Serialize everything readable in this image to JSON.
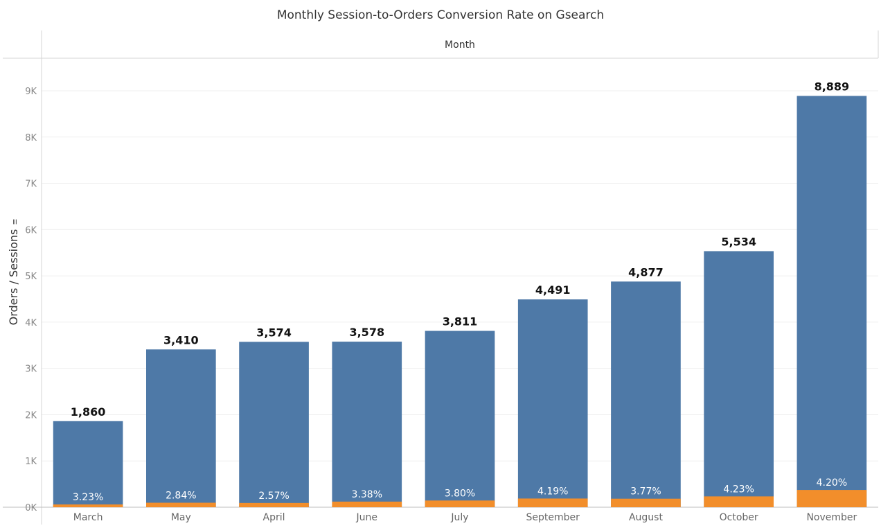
{
  "chart_data": {
    "type": "bar",
    "title": "Monthly Session-to-Orders Conversion Rate on Gsearch",
    "column_header": "Month",
    "ylabel": "Orders / Sessions",
    "ylim": [
      0,
      9500
    ],
    "yticks": [
      0,
      1000,
      2000,
      3000,
      4000,
      5000,
      6000,
      7000,
      8000,
      9000
    ],
    "ytick_labels": [
      "0K",
      "1K",
      "2K",
      "3K",
      "4K",
      "5K",
      "6K",
      "7K",
      "8K",
      "9K"
    ],
    "categories": [
      "March",
      "May",
      "April",
      "June",
      "July",
      "September",
      "August",
      "October",
      "November"
    ],
    "series": [
      {
        "name": "Sessions",
        "color": "#4E79A7",
        "values": [
          1860,
          3410,
          3574,
          3578,
          3811,
          4491,
          4877,
          5534,
          8889
        ],
        "labels": [
          "1,860",
          "3,410",
          "3,574",
          "3,578",
          "3,811",
          "4,491",
          "4,877",
          "5,534",
          "8,889"
        ]
      },
      {
        "name": "Orders",
        "color": "#F28E2B",
        "values": [
          60,
          97,
          92,
          121,
          145,
          188,
          184,
          234,
          373
        ],
        "labels": [
          "3.23%",
          "2.84%",
          "2.57%",
          "3.38%",
          "3.80%",
          "4.19%",
          "3.77%",
          "4.23%",
          "4.20%"
        ]
      }
    ],
    "grid": true
  }
}
